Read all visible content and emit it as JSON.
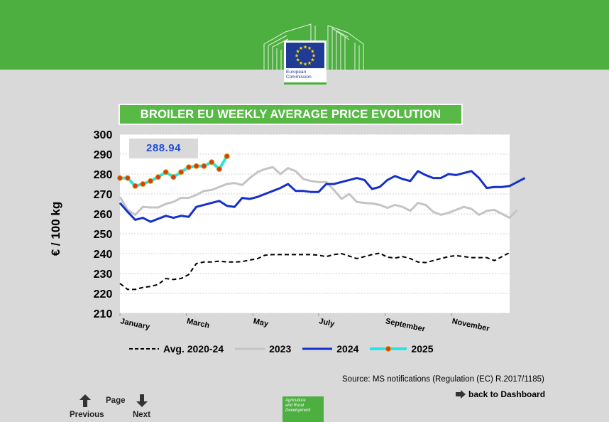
{
  "header": {
    "logo_text": "European\nCommission",
    "colors": {
      "band": "#4caf3f",
      "eu_blue": "#1f3b95",
      "star": "#ffdd00"
    }
  },
  "chart_data": {
    "type": "line",
    "title": "BROILER EU WEEKLY AVERAGE PRICE EVOLUTION",
    "xlabel": "",
    "ylabel": "€ / 100 kg",
    "ylim": [
      210,
      300
    ],
    "yticks": [
      210,
      220,
      230,
      240,
      250,
      260,
      270,
      280,
      290,
      300
    ],
    "x_unit": "week",
    "xlim": [
      1,
      52
    ],
    "month_labels": [
      {
        "label": "January",
        "week": 1
      },
      {
        "label": "March",
        "week": 9.7
      },
      {
        "label": "May",
        "week": 18.4
      },
      {
        "label": "July",
        "week": 27
      },
      {
        "label": "September",
        "week": 35.7
      },
      {
        "label": "November",
        "week": 44.4
      }
    ],
    "grid": true,
    "legend_position": "bottom",
    "highlight_value": "288.94",
    "series": [
      {
        "name": "Avg. 2020-24",
        "color": "#000000",
        "style": "dashed",
        "values": [
          225,
          222,
          222,
          223,
          223.5,
          224.5,
          227.5,
          227,
          227.5,
          229.5,
          235,
          235.8,
          235.8,
          236.2,
          235.8,
          235.8,
          236,
          236.8,
          237.5,
          239.2,
          239.5,
          239.5,
          239.5,
          239.5,
          239.5,
          239.5,
          239.2,
          238.5,
          239.5,
          240,
          238.8,
          237.5,
          238.5,
          239.5,
          240.2,
          238.2,
          237.8,
          238.5,
          237.5,
          235.8,
          235.5,
          236.5,
          237.5,
          238.5,
          239,
          238.5,
          238,
          238,
          238,
          236.5,
          238.5,
          240.5
        ]
      },
      {
        "name": "2023",
        "color": "#c4c4c4",
        "style": "solid",
        "values": [
          268.5,
          262,
          259.5,
          263.5,
          263.2,
          263.2,
          265,
          266,
          268,
          268,
          269.5,
          271.5,
          272,
          273.5,
          275,
          275.5,
          274.5,
          278,
          281,
          282.5,
          283.5,
          280,
          283,
          281.5,
          277.5,
          276.5,
          276,
          276,
          272,
          267.5,
          270,
          266,
          265.5,
          265.2,
          264.5,
          263,
          264.5,
          263.5,
          261.5,
          265.5,
          264.5,
          261,
          259.5,
          260.5,
          262,
          263.5,
          262.5,
          259.5,
          261.5,
          262,
          260,
          258,
          262
        ]
      },
      {
        "name": "2024",
        "color": "#1430c8",
        "style": "solid",
        "values": [
          265.5,
          261,
          257,
          258,
          256,
          257.5,
          259,
          258,
          259,
          258.5,
          263.5,
          264.5,
          265.5,
          266.5,
          264,
          263.5,
          268,
          267.5,
          268.5,
          270,
          271.5,
          273,
          275,
          271.5,
          271.5,
          271,
          271,
          275,
          275,
          276,
          277,
          278,
          277,
          272.5,
          273.5,
          277,
          279,
          277.5,
          276.5,
          281.5,
          279.5,
          278,
          278,
          280,
          279.5,
          280.5,
          281.5,
          278,
          273,
          273.5,
          273.5,
          274,
          276,
          278
        ]
      },
      {
        "name": "2025",
        "color": "#1ee8e8",
        "style": "markers",
        "values": [
          278,
          278,
          274,
          275,
          276.5,
          278.5,
          281,
          278.5,
          281,
          283.5,
          284,
          284,
          286,
          282.5,
          288.94
        ]
      }
    ]
  },
  "legend": {
    "items": [
      "Avg. 2020-24",
      "2023",
      "2024",
      "2025"
    ]
  },
  "footer": {
    "source": "Source: MS notifications (Regulation (EC) R.2017/1185)",
    "dashboard_link": "back to Dashboard",
    "page_label": "Page",
    "previous_label": "Previous",
    "next_label": "Next",
    "agri_text": "Agriculture\nand Rural\nDevelopment"
  }
}
